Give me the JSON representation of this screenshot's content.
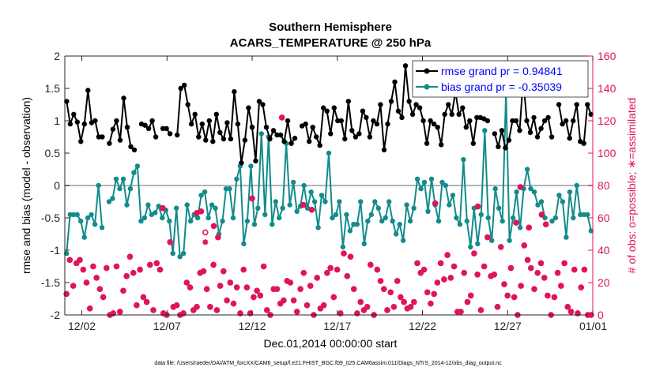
{
  "colors": {
    "rmse": "#000000",
    "bias": "#138b8b",
    "obs": "#e0145a",
    "zero": "#b3b3b3",
    "legend_text": "#0000ff"
  },
  "chart_data": {
    "type": "line",
    "title": "Southern Hemisphere",
    "subtitle": "ACARS_TEMPERATURE @ 250 hPa",
    "xlabel": "Dec.01,2014 00:00:00 start",
    "ylabel": "rmse and bias (model - observation)",
    "y2label": "# of obs: o=possible; ∗=assimilated",
    "footnote": "data file: /Users/raeder/DAI/ATM_forcXX/CAM6_setup/f.e21.FHIST_BGC.f09_025.CAM6assim.011/Diags_NTrS_2014-12/obs_diag_output.nc",
    "xlim": [
      0,
      124
    ],
    "ylim": [
      -2,
      2
    ],
    "y2lim": [
      0,
      160
    ],
    "yticks": [
      "-2",
      "-1.5",
      "-1",
      "-0.5",
      "0",
      "0.5",
      "1",
      "1.5",
      "2"
    ],
    "y2ticks": [
      "0",
      "20",
      "40",
      "60",
      "80",
      "100",
      "120",
      "140",
      "160"
    ],
    "xticks": [
      {
        "pos": 4,
        "label": "12/02"
      },
      {
        "pos": 24,
        "label": "12/07"
      },
      {
        "pos": 44,
        "label": "12/12"
      },
      {
        "pos": 64,
        "label": "12/17"
      },
      {
        "pos": 84,
        "label": "12/22"
      },
      {
        "pos": 104,
        "label": "12/27"
      },
      {
        "pos": 124,
        "label": "01/01"
      }
    ],
    "legend": [
      {
        "name": "rmse",
        "label": "rmse grand pr = 0.94841"
      },
      {
        "name": "bias",
        "label": "bias grand pr = -0.35039"
      }
    ],
    "series": [
      {
        "name": "rmse",
        "values": [
          1.3,
          0.95,
          1.1,
          0.98,
          0.68,
          0.95,
          1.47,
          0.97,
          1.0,
          0.75,
          0.75,
          null,
          0.65,
          0.87,
          1.0,
          0.7,
          1.35,
          0.9,
          0.6,
          0.55,
          null,
          0.95,
          0.93,
          0.88,
          1.0,
          0.75,
          null,
          0.88,
          0.88,
          0.8,
          null,
          0.78,
          1.5,
          1.55,
          1.25,
          0.95,
          1.1,
          0.75,
          0.95,
          0.7,
          1.0,
          0.68,
          1.1,
          0.82,
          0.72,
          0.97,
          0.72,
          1.45,
          0.95,
          0.35,
          0.7,
          1.2,
          0.9,
          0.38,
          1.3,
          1.25,
          0.9,
          0.72,
          0.85,
          0.78,
          0.78,
          0.68,
          1.0,
          0.65,
          0.73,
          null,
          0.92,
          0.95,
          0.68,
          0.9,
          0.75,
          0.62,
          1.2,
          1.15,
          0.8,
          1.2,
          1.0,
          1.0,
          0.72,
          1.3,
          0.85,
          0.75,
          0.8,
          1.15,
          1.05,
          0.75,
          1.0,
          0.95,
          1.25,
          0.55,
          0.95,
          1.3,
          1.6,
          1.15,
          1.05,
          1.85,
          1.3,
          1.1,
          1.25,
          1.2,
          1.0,
          0.65,
          1.0,
          0.95,
          0.9,
          0.63,
          1.1,
          1.25,
          1.1,
          1.45,
          1.1,
          1.2,
          0.9,
          1.0,
          0.65,
          1.05,
          1.05,
          1.03,
          1.0,
          null,
          0.8,
          0.6,
          0.85,
          0.58,
          0.7,
          1.0,
          1.0,
          0.85,
          1.65,
          1.0,
          0.82,
          1.05,
          0.75,
          0.88,
          1.0,
          1.05,
          0.75,
          null,
          1.25,
          0.95,
          1.0,
          0.73,
          1.0,
          1.25,
          0.68,
          0.65,
          1.25,
          1.1
        ]
      },
      {
        "name": "bias",
        "values": [
          -1.05,
          -0.45,
          -0.45,
          -0.45,
          -0.55,
          -0.8,
          -0.5,
          -0.45,
          -0.6,
          0.0,
          -0.65,
          null,
          -0.25,
          -0.2,
          0.1,
          -0.05,
          0.1,
          -0.3,
          -0.05,
          0.2,
          0.3,
          -0.55,
          -0.5,
          -0.3,
          -0.45,
          -0.42,
          -0.32,
          -0.5,
          -0.38,
          -0.55,
          -1.05,
          -0.35,
          -1.1,
          -1.05,
          -0.3,
          -0.55,
          -0.45,
          -0.5,
          -0.15,
          -0.1,
          -0.5,
          -0.3,
          -0.35,
          -0.75,
          -0.55,
          -0.05,
          -0.05,
          -0.5,
          0.1,
          0.3,
          -0.9,
          -0.55,
          0.3,
          -0.6,
          -0.35,
          0.8,
          -0.45,
          0.75,
          -0.6,
          -0.25,
          -0.5,
          -0.35,
          0.65,
          -0.3,
          0.05,
          -0.4,
          -0.32,
          0.0,
          -0.35,
          -0.1,
          -0.25,
          -0.65,
          -0.15,
          -0.25,
          0.5,
          -0.5,
          -0.45,
          -0.25,
          -0.95,
          -0.45,
          -0.7,
          -0.6,
          -0.6,
          -0.25,
          -0.9,
          -0.55,
          -0.45,
          -0.25,
          -0.35,
          -0.55,
          -0.5,
          -0.25,
          -0.55,
          -0.75,
          -0.6,
          -0.85,
          -0.3,
          -0.55,
          -0.35,
          0.1,
          -0.05,
          0.05,
          -0.4,
          0.1,
          -0.3,
          -0.55,
          0.05,
          0.0,
          -0.3,
          -0.15,
          -0.5,
          -0.6,
          0.4,
          -0.55,
          -0.95,
          -0.35,
          -0.9,
          -0.45,
          0.85,
          -0.5,
          -0.85,
          -0.05,
          -0.35,
          -0.55,
          1.45,
          -0.85,
          -0.5,
          -0.1,
          -0.65,
          -0.05,
          0.25,
          -0.05,
          -0.1,
          -0.3,
          -0.25,
          -0.5,
          null,
          -0.55,
          -0.5,
          -0.15,
          -0.25,
          -0.8,
          -0.1,
          -0.5,
          0.0,
          -0.45,
          -0.45,
          -0.45,
          -0.7
        ]
      },
      {
        "name": "obs_possible",
        "values": [
          13,
          34,
          18,
          32,
          34,
          28,
          20,
          4,
          30,
          23,
          16,
          11,
          29,
          0,
          1,
          30,
          2,
          15,
          24,
          36,
          26,
          6,
          28,
          11,
          8,
          31,
          3,
          32,
          28,
          1,
          0,
          45,
          5,
          6,
          0,
          1,
          20,
          17,
          3,
          5,
          26,
          27,
          16,
          5,
          31,
          3,
          18,
          27,
          9,
          20,
          7,
          17,
          1,
          28,
          17,
          1,
          11,
          15,
          12,
          30,
          3,
          0,
          16,
          16,
          7,
          9,
          21,
          20,
          9,
          2,
          16,
          26,
          6,
          18,
          0,
          23,
          4,
          6,
          26,
          29,
          11,
          28,
          1,
          38,
          24,
          36,
          16,
          1,
          8,
          3,
          5,
          31,
          0,
          28,
          21,
          16,
          3,
          14,
          5,
          21,
          11,
          8,
          4,
          5,
          8,
          32,
          26,
          28,
          14,
          7,
          13,
          20,
          32,
          22,
          37,
          23,
          30,
          2,
          2,
          26,
          8,
          12,
          38,
          25,
          3,
          30,
          48,
          24,
          25,
          5,
          42,
          19,
          12,
          29,
          11,
          0,
          18,
          43,
          34,
          29,
          16,
          26,
          32,
          23,
          12,
          0,
          11,
          26,
          18,
          32,
          5,
          2,
          28,
          1,
          17,
          28,
          0,
          0
        ]
      },
      {
        "name": "obs_assimilated",
        "values": [
          13,
          34,
          18,
          32,
          34,
          28,
          20,
          4,
          30,
          23,
          16,
          11,
          29,
          0,
          1,
          30,
          2,
          15,
          24,
          36,
          26,
          6,
          28,
          11,
          8,
          31,
          3,
          32,
          28,
          1,
          0,
          45,
          5,
          6,
          0,
          1,
          20,
          17,
          3,
          5,
          26,
          27,
          16,
          5,
          31,
          3,
          18,
          27,
          9,
          20,
          7,
          17,
          1,
          28,
          17,
          1,
          11,
          15,
          12,
          30,
          3,
          0,
          16,
          16,
          7,
          9,
          21,
          20,
          9,
          2,
          16,
          26,
          6,
          18,
          0,
          23,
          4,
          6,
          26,
          29,
          11,
          28,
          1,
          38,
          24,
          36,
          16,
          1,
          8,
          3,
          5,
          31,
          0,
          28,
          21,
          16,
          3,
          14,
          5,
          21,
          11,
          8,
          4,
          5,
          8,
          32,
          26,
          28,
          14,
          7,
          13,
          20,
          32,
          22,
          37,
          23,
          30,
          2,
          2,
          26,
          8,
          12,
          38,
          25,
          3,
          30,
          48,
          24,
          25,
          5,
          42,
          19,
          12,
          29,
          11,
          0,
          18,
          43,
          34,
          29,
          16,
          26,
          32,
          23,
          12,
          0,
          11,
          26,
          18,
          32,
          5,
          2,
          28,
          1,
          17,
          28,
          0,
          0
        ]
      }
    ],
    "obs_top": [
      {
        "x": 51,
        "possible": 122,
        "assimilated": 122
      },
      {
        "x": 87,
        "possible": 69,
        "assimilated": 69
      },
      {
        "x": 58,
        "possible": 65,
        "assimilated": 65
      },
      {
        "x": 33,
        "possible": 51,
        "assimilated": 45
      },
      {
        "x": 35,
        "possible": 55,
        "assimilated": 55
      },
      {
        "x": 36,
        "possible": 48,
        "assimilated": 48
      },
      {
        "x": 32,
        "possible": 64,
        "assimilated": 64
      },
      {
        "x": 44,
        "possible": 72,
        "assimilated": 72
      },
      {
        "x": 56,
        "possible": 68,
        "assimilated": 68
      },
      {
        "x": 97,
        "possible": 67,
        "assimilated": 67
      },
      {
        "x": 113,
        "possible": 56,
        "assimilated": 56
      },
      {
        "x": 106,
        "possible": 57,
        "assimilated": 57
      },
      {
        "x": 109,
        "possible": 54,
        "assimilated": 54
      },
      {
        "x": 112,
        "possible": 62,
        "assimilated": 62
      },
      {
        "x": 107,
        "possible": 79,
        "assimilated": 79
      },
      {
        "x": 23,
        "possible": 66,
        "assimilated": 66
      },
      {
        "x": 31,
        "possible": 63,
        "assimilated": 63
      }
    ]
  }
}
